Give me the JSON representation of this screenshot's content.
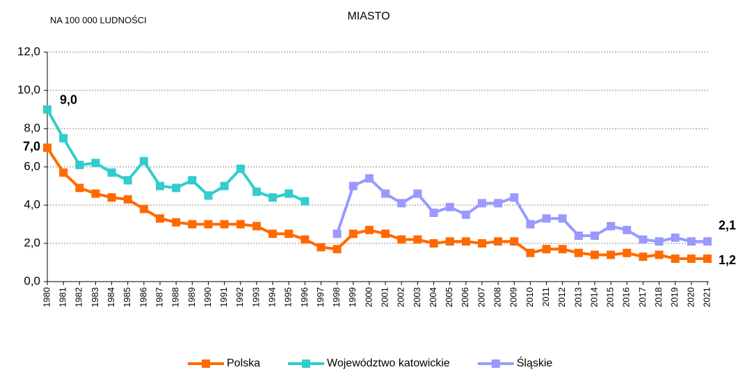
{
  "chart_data": {
    "type": "line",
    "title": "MIASTO",
    "ylabel": "NA 100 000 LUDNOŚCI",
    "categories": [
      "1980",
      "1981",
      "1982",
      "1983",
      "1984",
      "1985",
      "1986",
      "1987",
      "1988",
      "1989",
      "1990",
      "1991",
      "1992",
      "1993",
      "1994",
      "1995",
      "1996",
      "1997",
      "1998",
      "1999",
      "2000",
      "2001",
      "2002",
      "2003",
      "2004",
      "2005",
      "2006",
      "2007",
      "2008",
      "2009",
      "2010",
      "2011",
      "2012",
      "2013",
      "2014",
      "2015",
      "2016",
      "2017",
      "2018",
      "2019",
      "2020",
      "2021"
    ],
    "series": [
      {
        "name": "Polska",
        "color": "#ff6a00",
        "label_color": "#ff0000",
        "values": [
          7.0,
          5.7,
          4.9,
          4.6,
          4.4,
          4.3,
          3.8,
          3.3,
          3.1,
          3.0,
          3.0,
          3.0,
          3.0,
          2.9,
          2.5,
          2.5,
          2.2,
          1.8,
          1.7,
          2.5,
          2.7,
          2.5,
          2.2,
          2.2,
          2.0,
          2.1,
          2.1,
          2.0,
          2.1,
          2.1,
          1.5,
          1.7,
          1.7,
          1.5,
          1.4,
          1.4,
          1.5,
          1.3,
          1.4,
          1.2,
          1.2,
          1.2
        ],
        "value_labels": [
          "7,0",
          null,
          null,
          null,
          null,
          null,
          null,
          null,
          null,
          null,
          null,
          null,
          null,
          null,
          null,
          null,
          null,
          null,
          null,
          null,
          null,
          null,
          null,
          null,
          null,
          null,
          null,
          null,
          null,
          null,
          null,
          null,
          null,
          null,
          null,
          null,
          null,
          null,
          null,
          null,
          null,
          "1,2"
        ]
      },
      {
        "name": "Województwo katowickie",
        "color": "#33cccc",
        "label_color": "#33cccc",
        "values": [
          9.0,
          7.5,
          6.1,
          6.2,
          5.7,
          5.3,
          6.3,
          5.0,
          4.9,
          5.3,
          4.5,
          5.0,
          5.9,
          4.7,
          4.4,
          4.6,
          4.2,
          null,
          null,
          null,
          null,
          null,
          null,
          null,
          null,
          null,
          null,
          null,
          null,
          null,
          null,
          null,
          null,
          null,
          null,
          null,
          null,
          null,
          null,
          null,
          null,
          null
        ],
        "value_labels": [
          "9,0",
          null,
          null,
          null,
          null,
          null,
          null,
          null,
          null,
          null,
          null,
          null,
          null,
          null,
          null,
          null,
          null,
          null,
          null,
          null,
          null,
          null,
          null,
          null,
          null,
          null,
          null,
          null,
          null,
          null,
          null,
          null,
          null,
          null,
          null,
          null,
          null,
          null,
          null,
          null,
          null,
          null
        ]
      },
      {
        "name": "Śląskie",
        "color": "#9999ff",
        "label_color": "#9999ff",
        "values": [
          null,
          null,
          null,
          null,
          null,
          null,
          null,
          null,
          null,
          null,
          null,
          null,
          null,
          null,
          null,
          null,
          null,
          null,
          2.5,
          5.0,
          5.4,
          4.6,
          4.1,
          4.6,
          3.6,
          3.9,
          3.5,
          4.1,
          4.1,
          4.4,
          3.0,
          3.3,
          3.3,
          2.4,
          2.4,
          2.9,
          2.7,
          2.2,
          2.1,
          2.3,
          2.1,
          2.1
        ],
        "value_labels": [
          null,
          null,
          null,
          null,
          null,
          null,
          null,
          null,
          null,
          null,
          null,
          null,
          null,
          null,
          null,
          null,
          null,
          null,
          null,
          null,
          null,
          null,
          null,
          null,
          null,
          null,
          null,
          null,
          null,
          null,
          null,
          null,
          null,
          null,
          null,
          null,
          null,
          null,
          null,
          null,
          null,
          "2,1"
        ]
      }
    ],
    "ylim": [
      0,
      12
    ],
    "yticks": [
      {
        "value": 0,
        "label": "0,0"
      },
      {
        "value": 2,
        "label": "2,0"
      },
      {
        "value": 4,
        "label": "4,0"
      },
      {
        "value": 6,
        "label": "6,0"
      },
      {
        "value": 8,
        "label": "8,0"
      },
      {
        "value": 10,
        "label": "10,0"
      },
      {
        "value": 12,
        "label": "12,0"
      }
    ],
    "grid": true,
    "legend": "bottom"
  }
}
